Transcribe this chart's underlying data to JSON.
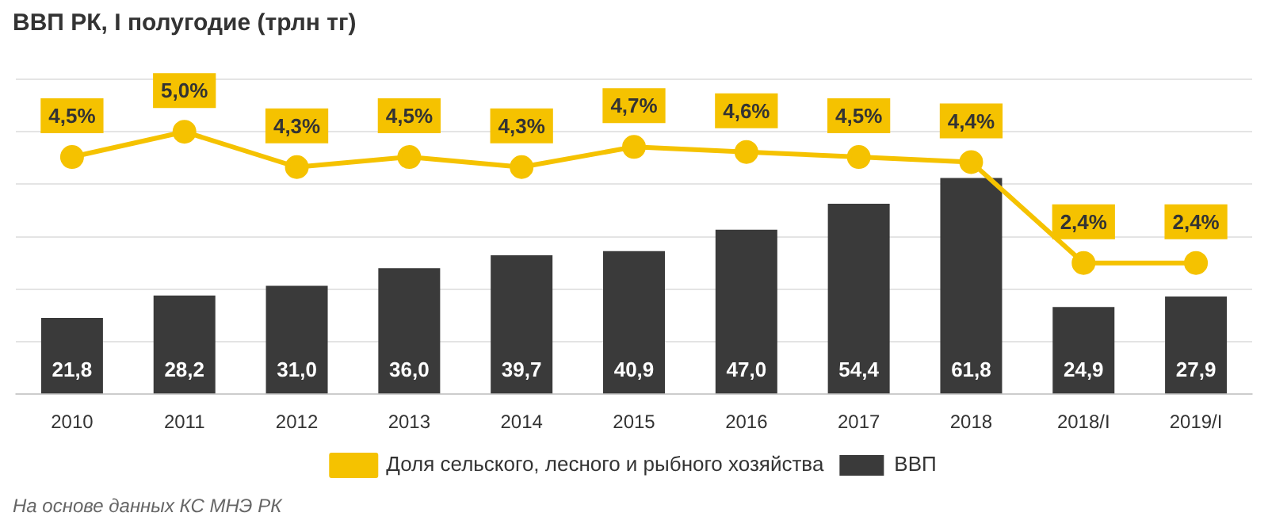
{
  "chart_data": {
    "type": "bar",
    "title": "ВВП РК, I полугодие (трлн тг)",
    "categories": [
      "2010",
      "2011",
      "2012",
      "2013",
      "2014",
      "2015",
      "2016",
      "2017",
      "2018",
      "2018/I",
      "2019/I"
    ],
    "series": [
      {
        "name": "ВВП",
        "color": "#3a3a3a",
        "values": [
          21.8,
          28.2,
          31.0,
          36.0,
          39.7,
          40.9,
          47.0,
          54.4,
          61.8,
          24.9,
          27.9
        ],
        "value_labels": [
          "21,8",
          "28,2",
          "31,0",
          "36,0",
          "39,7",
          "40,9",
          "47,0",
          "54,4",
          "61,8",
          "24,9",
          "27,9"
        ]
      },
      {
        "name": "Доля сельского, лесного и рыбного хозяйства",
        "type": "line",
        "axis": "y2",
        "color": "#f5c200",
        "values": [
          4.5,
          5.0,
          4.3,
          4.5,
          4.3,
          4.7,
          4.6,
          4.5,
          4.4,
          2.4,
          2.4
        ],
        "value_labels": [
          "4,5%",
          "5,0%",
          "4,3%",
          "4,5%",
          "4,3%",
          "4,7%",
          "4,6%",
          "4,5%",
          "4,4%",
          "2,4%",
          "2,4%"
        ]
      }
    ],
    "ylim": [
      0,
      90
    ],
    "grid": "y",
    "legend": "bottom",
    "marker": "circle",
    "tick_labels": "x",
    "annotations": [
      "На основе данных КС МНЭ РК"
    ]
  }
}
